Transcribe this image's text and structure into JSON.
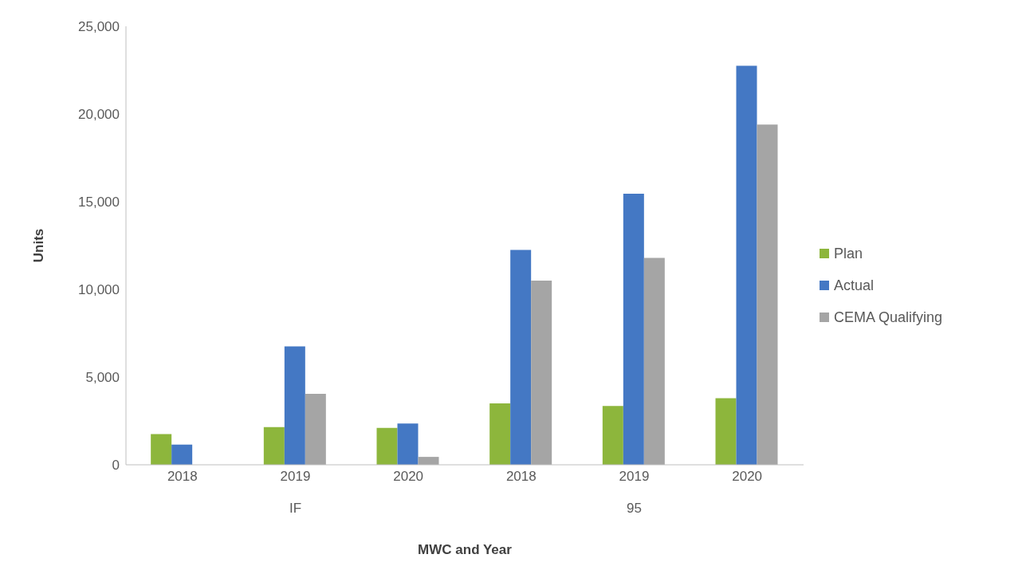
{
  "chart_data": {
    "type": "bar",
    "xlabel": "MWC and Year",
    "ylabel": "Units",
    "categories": [
      "2018",
      "2019",
      "2020",
      "2018",
      "2019",
      "2020"
    ],
    "series": [
      {
        "name": "Plan",
        "color": "#8db63c",
        "values": [
          1750,
          2150,
          2100,
          3500,
          3350,
          3800
        ]
      },
      {
        "name": "Actual",
        "color": "#4478c4",
        "values": [
          1150,
          6750,
          2350,
          12250,
          15450,
          22750
        ]
      },
      {
        "name": "CEMA Qualifying",
        "color": "#a5a5a5",
        "values": [
          null,
          4050,
          450,
          10500,
          11800,
          19400
        ]
      }
    ],
    "annotations": [
      "IF",
      "95"
    ],
    "ylim": [
      0,
      25000
    ],
    "yticks": [
      0,
      {
        "value": 5000,
        "label": "5,000"
      },
      {
        "value": 10000,
        "label": "10,000"
      },
      {
        "value": 15000,
        "label": "15,000"
      },
      {
        "value": 20000,
        "label": "20,000"
      },
      {
        "value": 25000,
        "label": "25,000"
      }
    ],
    "legend": "right"
  }
}
